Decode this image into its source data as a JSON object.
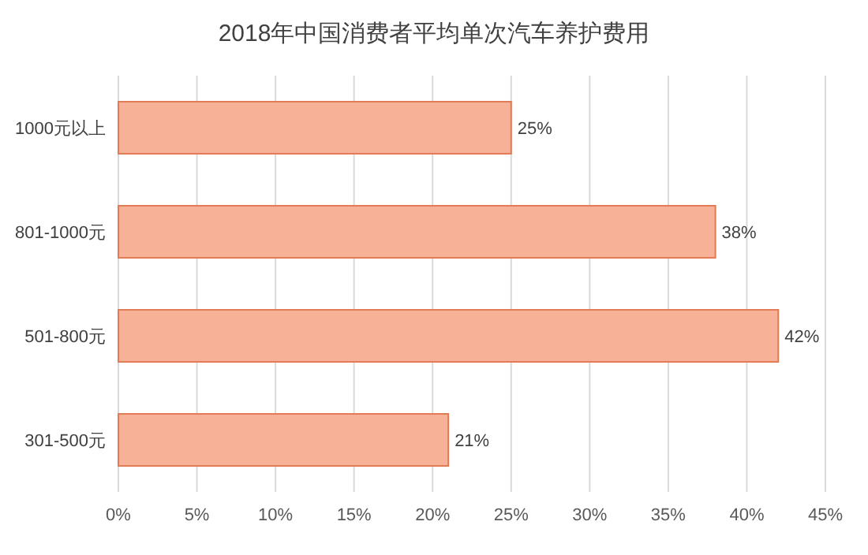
{
  "chart_data": {
    "type": "bar",
    "orientation": "horizontal",
    "title": "2018年中国消费者平均单次汽车养护费用",
    "categories": [
      "1000元以上",
      "801-1000元",
      "501-800元",
      "301-500元"
    ],
    "values": [
      25,
      38,
      42,
      21
    ],
    "value_labels": [
      "25%",
      "38%",
      "42%",
      "21%"
    ],
    "color": "#f6b196",
    "xlim": [
      0,
      45
    ],
    "xticks": [
      {
        "value": 0,
        "label": "0%"
      },
      {
        "value": 5,
        "label": "5%"
      },
      {
        "value": 10,
        "label": "10%"
      },
      {
        "value": 15,
        "label": "15%"
      },
      {
        "value": 20,
        "label": "20%"
      },
      {
        "value": 25,
        "label": "25%"
      },
      {
        "value": 30,
        "label": "30%"
      },
      {
        "value": 35,
        "label": "35%"
      },
      {
        "value": 40,
        "label": "40%"
      },
      {
        "value": 45,
        "label": "45%"
      }
    ],
    "grid": "x"
  }
}
